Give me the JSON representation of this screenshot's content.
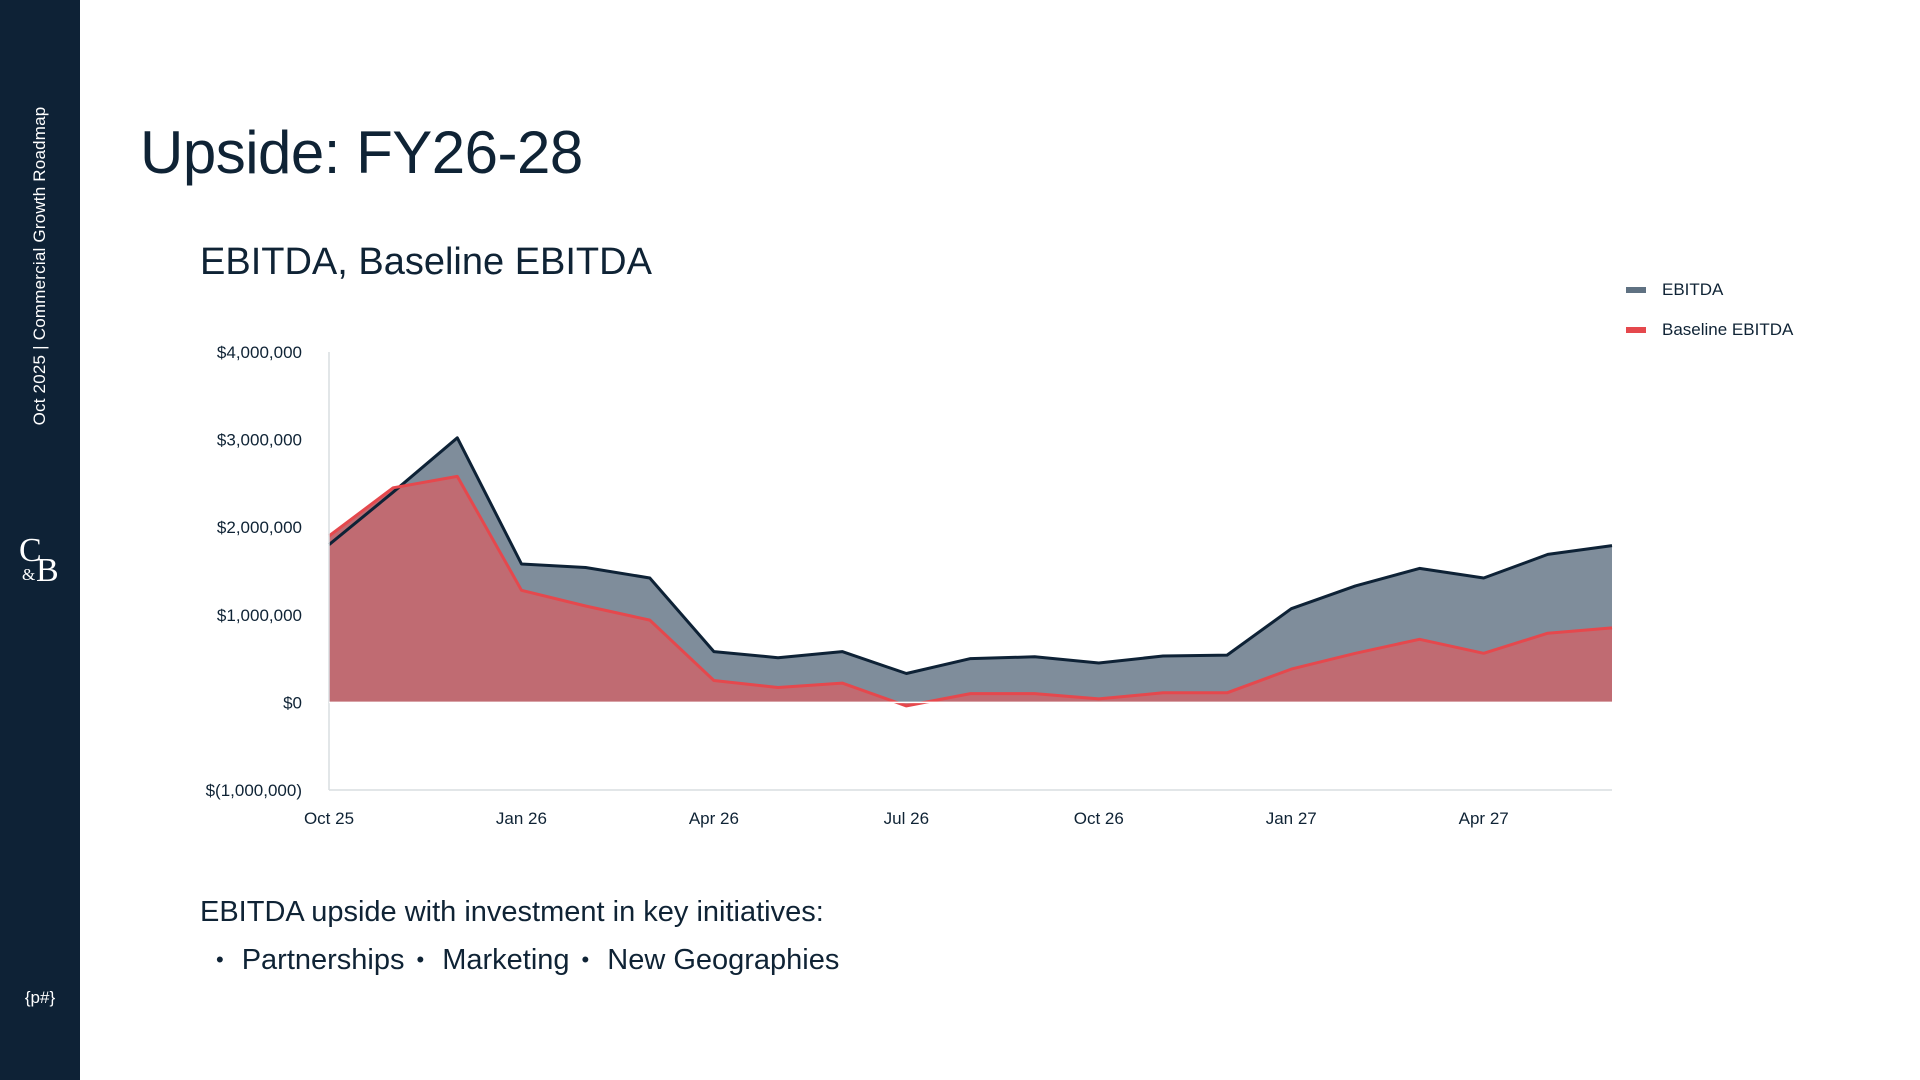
{
  "sidebar": {
    "date": "Oct 2025",
    "separator": "|",
    "deck_title": "Commercial Growth Roadmap",
    "logo_c": "C",
    "logo_amp": "&",
    "logo_b": "B",
    "page_number": "{p#}"
  },
  "slide_title": "Upside: FY26-28",
  "summary": {
    "text": "EBITDA upside with investment in key initiatives:",
    "bullets": [
      "Partnerships",
      "Marketing",
      "New Geographies"
    ]
  },
  "colors": {
    "ebitda_line": "#0e2236",
    "ebitda_fill": "#5f7182",
    "baseline_line": "#e5484d",
    "baseline_fill": "#c06b72",
    "sidebar": "#0e2236"
  },
  "chart_data": {
    "type": "area",
    "title": "EBITDA, Baseline EBITDA",
    "xlabel": "",
    "ylabel": "",
    "x": [
      "Oct 25",
      "Nov 25",
      "Dec 25",
      "Jan 26",
      "Feb 26",
      "Mar 26",
      "Apr 26",
      "May 26",
      "Jun 26",
      "Jul 26",
      "Aug 26",
      "Sep 26",
      "Oct 26",
      "Nov 26",
      "Dec 26",
      "Jan 27",
      "Feb 27",
      "Mar 27",
      "Apr 27",
      "May 27",
      "Jun 27"
    ],
    "x_tick_labels": [
      {
        "index": 0,
        "label": "Oct 25"
      },
      {
        "index": 3,
        "label": "Jan 26"
      },
      {
        "index": 6,
        "label": "Apr 26"
      },
      {
        "index": 9,
        "label": "Jul 26"
      },
      {
        "index": 12,
        "label": "Oct 26"
      },
      {
        "index": 15,
        "label": "Jan 27"
      },
      {
        "index": 18,
        "label": "Apr 27"
      }
    ],
    "y_ticks": [
      -1000000,
      0,
      1000000,
      2000000,
      3000000,
      4000000
    ],
    "y_tick_labels": [
      "$(1,000,000)",
      "$0",
      "$1,000,000",
      "$2,000,000",
      "$3,000,000",
      "$4,000,000"
    ],
    "ylim": [
      -1000000,
      4000000
    ],
    "grid": false,
    "legend_position": "top-right",
    "series": [
      {
        "name": "EBITDA",
        "values": [
          1800000,
          2400000,
          3020000,
          1580000,
          1540000,
          1420000,
          580000,
          510000,
          580000,
          330000,
          500000,
          520000,
          450000,
          530000,
          540000,
          1070000,
          1330000,
          1530000,
          1420000,
          1690000,
          1790000
        ]
      },
      {
        "name": "Baseline EBITDA",
        "values": [
          1900000,
          2450000,
          2580000,
          1280000,
          1100000,
          940000,
          250000,
          170000,
          220000,
          -40000,
          100000,
          100000,
          40000,
          110000,
          110000,
          380000,
          560000,
          720000,
          560000,
          790000,
          850000
        ]
      }
    ]
  }
}
